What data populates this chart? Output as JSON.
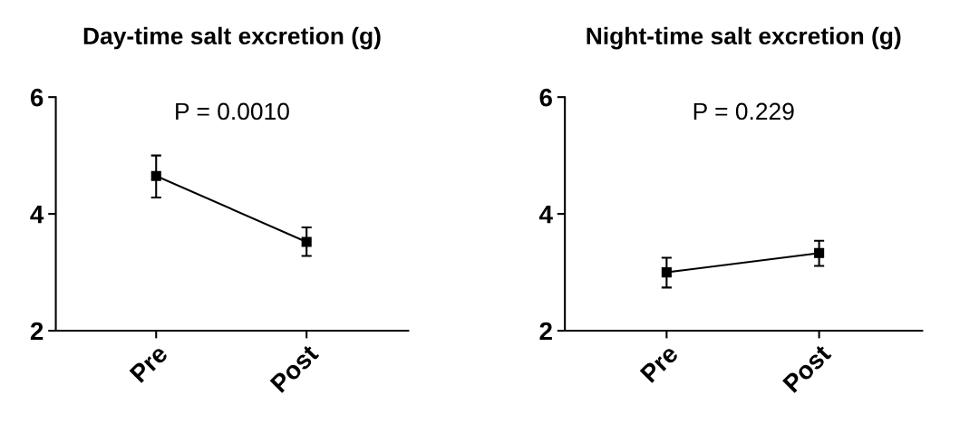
{
  "chart_data": [
    {
      "type": "line",
      "title": "Day-time salt excretion (g)",
      "categories": [
        "Pre",
        "Post"
      ],
      "series": [
        {
          "color": "#000000",
          "values": [
            4.65,
            3.52
          ],
          "errors": [
            [
              4.28,
              5.0
            ],
            [
              3.28,
              3.77
            ]
          ]
        }
      ],
      "ylim": [
        2,
        6
      ],
      "yticks": [
        2,
        4,
        6
      ],
      "marker": "square",
      "grid": false,
      "annotations": [
        "P = 0.0010"
      ]
    },
    {
      "type": "line",
      "title": "Night-time salt excretion (g)",
      "categories": [
        "Pre",
        "Post"
      ],
      "series": [
        {
          "color": "#000000",
          "values": [
            3.0,
            3.33
          ],
          "errors": [
            [
              2.74,
              3.25
            ],
            [
              3.11,
              3.54
            ]
          ]
        }
      ],
      "ylim": [
        2,
        6
      ],
      "yticks": [
        2,
        4,
        6
      ],
      "marker": "square",
      "grid": false,
      "annotations": [
        "P = 0.229"
      ]
    }
  ]
}
